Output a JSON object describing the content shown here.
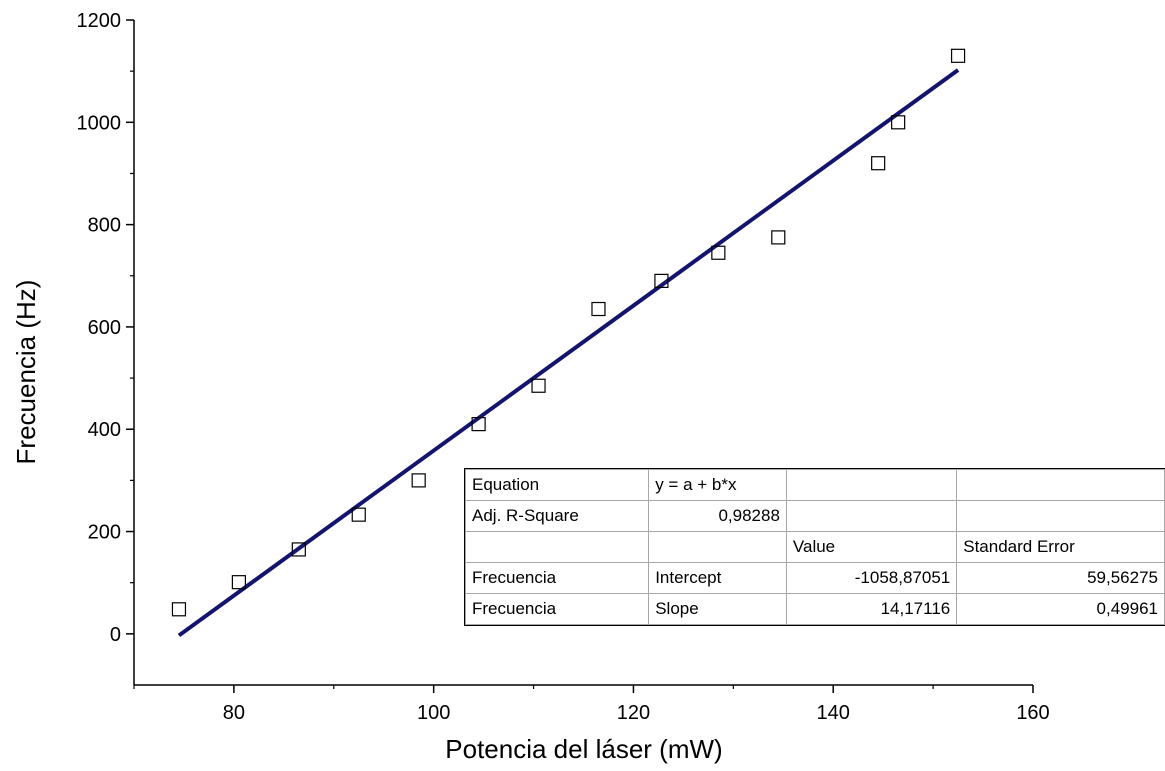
{
  "chart_data": {
    "type": "scatter",
    "xlabel": "Potencia del láser (mW)",
    "ylabel": "Frecuencia (Hz)",
    "xlim": [
      70,
      160
    ],
    "ylim": [
      -100,
      1200
    ],
    "x_ticks": [
      80,
      100,
      120,
      140,
      160
    ],
    "y_ticks": [
      0,
      200,
      400,
      600,
      800,
      1000,
      1200
    ],
    "grid": false,
    "series": [
      {
        "marker": "open-square",
        "color": "#000000",
        "points": [
          {
            "x": 74.5,
            "y": 48
          },
          {
            "x": 80.5,
            "y": 101
          },
          {
            "x": 86.5,
            "y": 165
          },
          {
            "x": 92.5,
            "y": 233
          },
          {
            "x": 98.5,
            "y": 300
          },
          {
            "x": 104.5,
            "y": 410
          },
          {
            "x": 110.5,
            "y": 485
          },
          {
            "x": 116.5,
            "y": 635
          },
          {
            "x": 122.8,
            "y": 690
          },
          {
            "x": 128.5,
            "y": 745
          },
          {
            "x": 134.5,
            "y": 775
          },
          {
            "x": 144.5,
            "y": 920
          },
          {
            "x": 146.5,
            "y": 1000
          },
          {
            "x": 152.5,
            "y": 1130
          }
        ]
      }
    ],
    "fit": {
      "type": "linear",
      "color": "#14146e",
      "x_range": [
        74.5,
        152.5
      ],
      "intercept": -1058.87051,
      "slope": 14.17116
    },
    "fit_table": {
      "rows": [
        [
          "Equation",
          "y = a + b*x",
          "",
          ""
        ],
        [
          "Adj. R-Square",
          "0,98288",
          "",
          ""
        ],
        [
          "",
          "",
          "Value",
          "Standard Error"
        ],
        [
          "Frecuencia",
          "Intercept",
          "-1058,87051",
          "59,56275"
        ],
        [
          "Frecuencia",
          "Slope",
          "14,17116",
          "0,49961"
        ]
      ],
      "numeric_cells": [
        [
          1,
          1
        ],
        [
          3,
          2
        ],
        [
          3,
          3
        ],
        [
          4,
          2
        ],
        [
          4,
          3
        ]
      ]
    }
  }
}
